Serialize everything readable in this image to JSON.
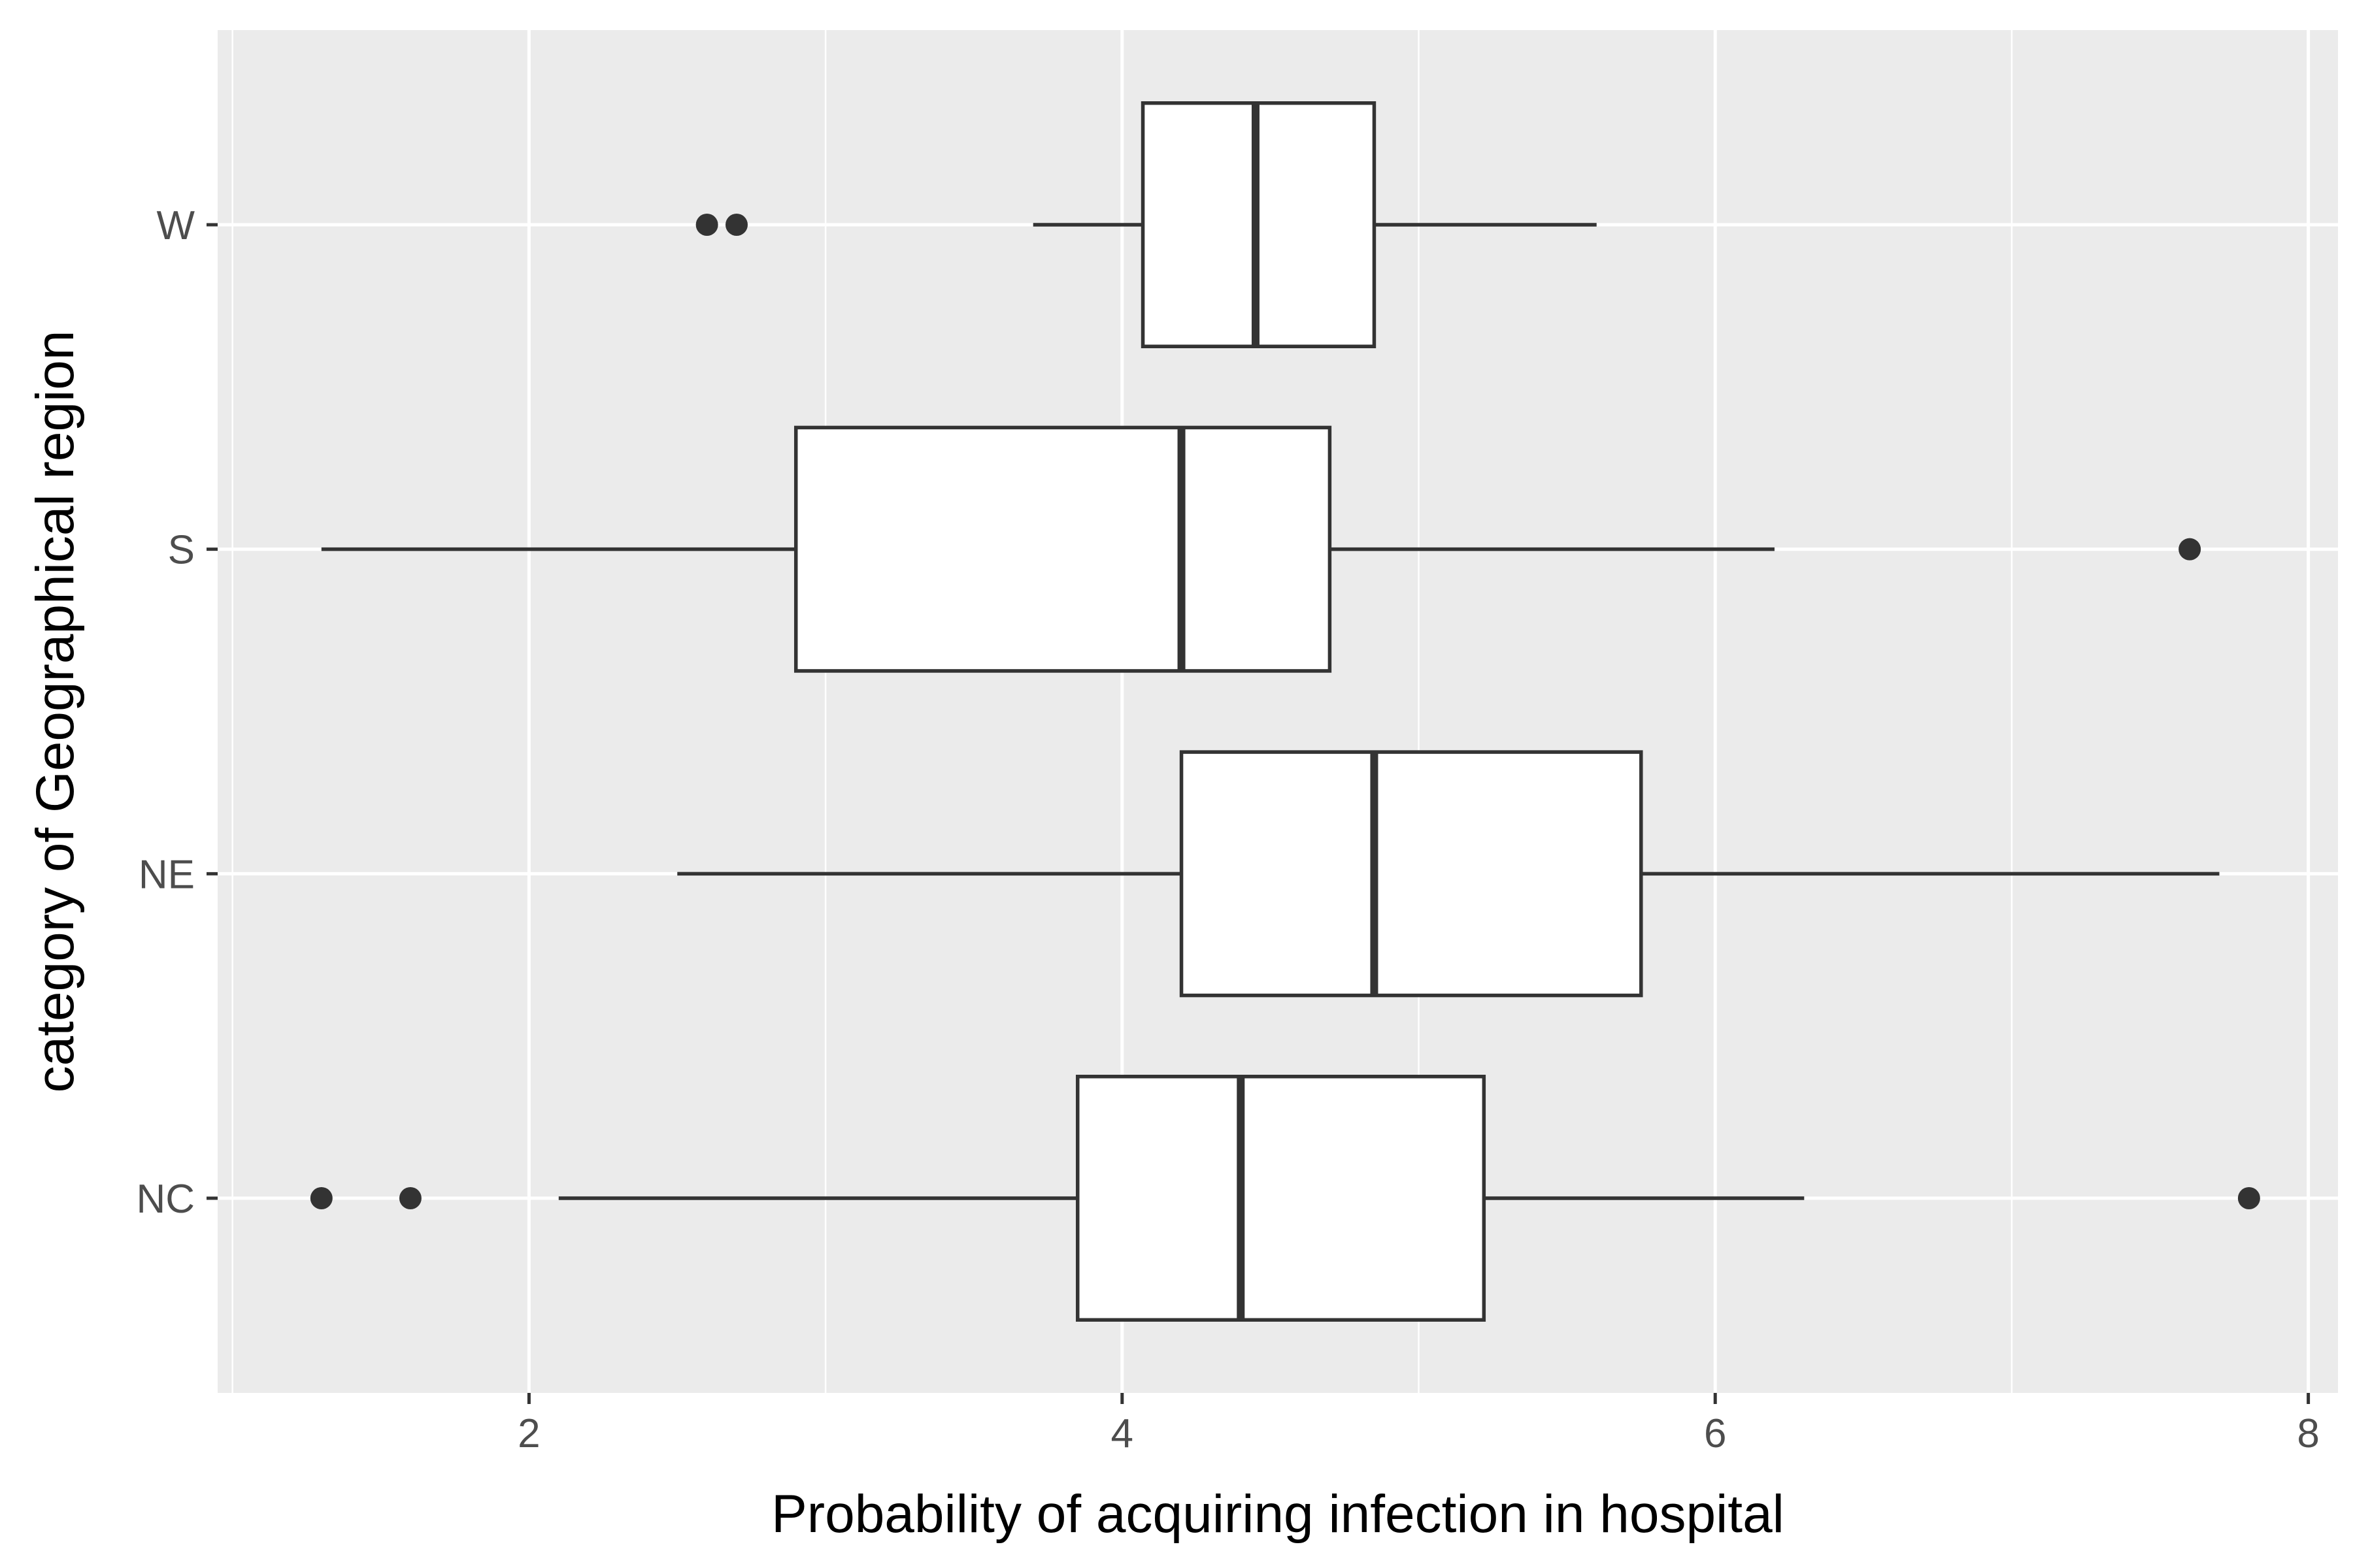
{
  "chart_data": {
    "type": "boxplot",
    "orientation": "horizontal",
    "xlabel": "Probability of acquiring infection in hospital",
    "ylabel": "category of Geographical region",
    "xlim": [
      0.95,
      8.1
    ],
    "x_ticks": [
      2,
      4,
      6,
      8
    ],
    "x_minor_ticks": [
      3,
      5,
      7
    ],
    "categories": [
      "NC",
      "NE",
      "S",
      "W"
    ],
    "boxes": [
      {
        "category": "NC",
        "whisker_low": 2.1,
        "q1": 3.85,
        "median": 4.4,
        "q3": 5.22,
        "whisker_high": 6.3,
        "outliers": [
          1.3,
          1.6,
          7.8
        ]
      },
      {
        "category": "NE",
        "whisker_low": 2.5,
        "q1": 4.2,
        "median": 4.85,
        "q3": 5.75,
        "whisker_high": 7.7,
        "outliers": []
      },
      {
        "category": "S",
        "whisker_low": 1.3,
        "q1": 2.9,
        "median": 4.2,
        "q3": 4.7,
        "whisker_high": 6.2,
        "outliers": [
          7.6
        ]
      },
      {
        "category": "W",
        "whisker_low": 3.7,
        "q1": 4.07,
        "median": 4.45,
        "q3": 4.85,
        "whisker_high": 5.6,
        "outliers": [
          2.6,
          2.7
        ]
      }
    ],
    "grid": true,
    "colors": {
      "panel_background": "#EBEBEB",
      "grid": "#FFFFFF",
      "box_fill": "#FFFFFF",
      "box_line": "#333333",
      "outlier": "#333333",
      "tick_text": "#4D4D4D",
      "title_text": "#000000"
    }
  }
}
